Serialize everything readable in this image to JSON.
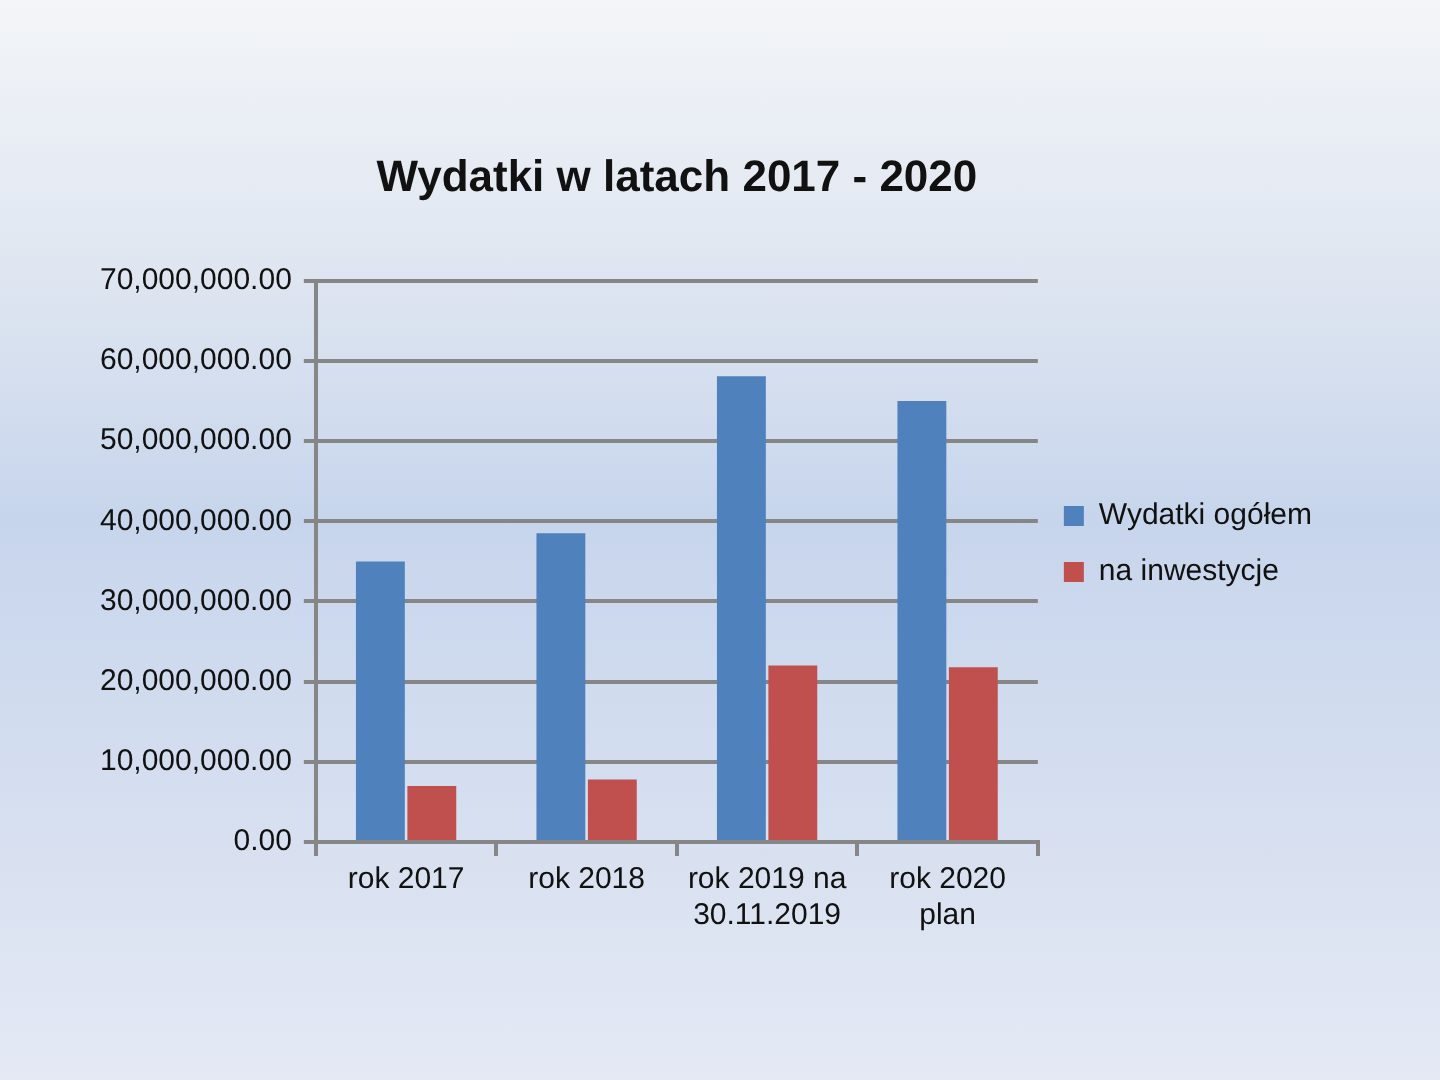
{
  "chart_data": {
    "type": "bar",
    "title": "Wydatki w latach 2017 - 2020",
    "categories": [
      "rok 2017",
      "rok 2018",
      "rok 2019 na 30.11.2019",
      "rok 2020 plan"
    ],
    "series": [
      {
        "name": "Wydatki ogółem",
        "color": "#4f81bd",
        "values": [
          35000000,
          38500000,
          58100000,
          55000000
        ]
      },
      {
        "name": "na inwestycje",
        "color": "#c0504d",
        "values": [
          7000000,
          7800000,
          22000000,
          21800000
        ]
      }
    ],
    "ylim": [
      0,
      70000000
    ],
    "yticks": [
      {
        "value": 0,
        "label": "0.00"
      },
      {
        "value": 10000000,
        "label": "10,000,000.00"
      },
      {
        "value": 20000000,
        "label": "20,000,000.00"
      },
      {
        "value": 30000000,
        "label": "30,000,000.00"
      },
      {
        "value": 40000000,
        "label": "40,000,000.00"
      },
      {
        "value": 50000000,
        "label": "50,000,000.00"
      },
      {
        "value": 60000000,
        "label": "60,000,000.00"
      },
      {
        "value": 70000000,
        "label": "70,000,000.00"
      }
    ],
    "grid": "y",
    "legend": "right"
  }
}
